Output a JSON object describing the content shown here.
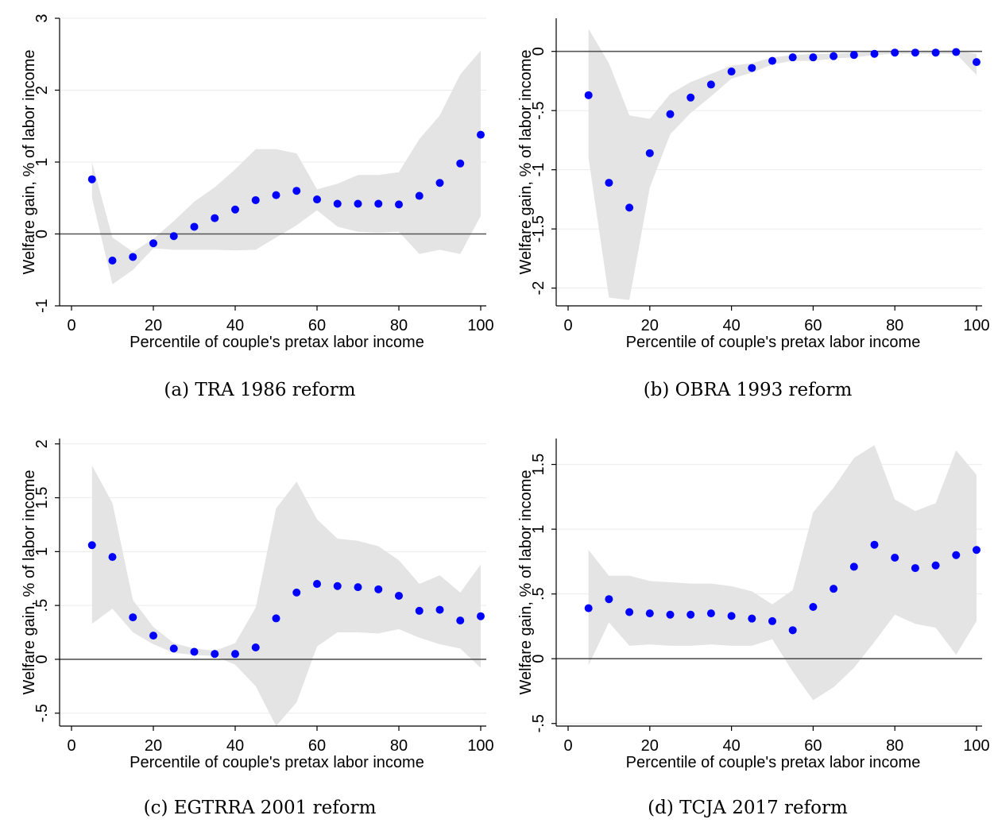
{
  "chart_data": [
    {
      "type": "scatter",
      "xlabel": "Percentile of couple's pretax labor income",
      "ylabel": "Welfare gain, % of labor income",
      "caption": "(a) TRA 1986 reform",
      "xlim": [
        0,
        100
      ],
      "ylim": [
        -1,
        3
      ],
      "xticks": [
        "0",
        "20",
        "40",
        "60",
        "80",
        "100"
      ],
      "yticks": [
        "-1",
        "0",
        "1",
        "2",
        "3"
      ],
      "x": [
        5,
        10,
        15,
        20,
        25,
        30,
        35,
        40,
        45,
        50,
        55,
        60,
        65,
        70,
        75,
        80,
        85,
        90,
        95,
        100
      ],
      "y": [
        0.76,
        -0.37,
        -0.32,
        -0.13,
        -0.03,
        0.1,
        0.22,
        0.34,
        0.47,
        0.54,
        0.6,
        0.48,
        0.42,
        0.42,
        0.42,
        0.41,
        0.53,
        0.71,
        0.98,
        1.38
      ],
      "ci_upper": [
        1.0,
        -0.05,
        -0.25,
        -0.07,
        0.18,
        0.45,
        0.65,
        0.9,
        1.18,
        1.18,
        1.12,
        0.62,
        0.7,
        0.82,
        0.82,
        0.86,
        1.32,
        1.65,
        2.22,
        2.55
      ],
      "ci_lower": [
        0.5,
        -0.7,
        -0.5,
        -0.2,
        -0.22,
        -0.22,
        -0.22,
        -0.23,
        -0.22,
        -0.05,
        0.12,
        0.33,
        0.1,
        0.03,
        0.02,
        0.03,
        -0.28,
        -0.22,
        -0.28,
        0.25
      ],
      "colors": {
        "points": "#0000ff",
        "band": "#e4e4e4",
        "grid": "#ebebeb",
        "zero_line": "#555555"
      }
    },
    {
      "type": "scatter",
      "xlabel": "Percentile of couple's pretax labor income",
      "ylabel": "Welfare gain, % of labor income",
      "caption": "(b) OBRA 1993 reform",
      "xlim": [
        0,
        100
      ],
      "ylim": [
        -2.15,
        0.28
      ],
      "xticks": [
        "0",
        "20",
        "40",
        "60",
        "80",
        "100"
      ],
      "yticks": [
        "-2",
        "-1.5",
        "-1",
        "-.5",
        "0"
      ],
      "x": [
        5,
        10,
        15,
        20,
        25,
        30,
        35,
        40,
        45,
        50,
        55,
        60,
        65,
        70,
        75,
        80,
        85,
        90,
        95,
        100
      ],
      "y": [
        -0.37,
        -1.11,
        -1.32,
        -0.86,
        -0.53,
        -0.39,
        -0.28,
        -0.17,
        -0.14,
        -0.08,
        -0.05,
        -0.05,
        -0.04,
        -0.03,
        -0.02,
        -0.01,
        -0.01,
        -0.01,
        -0.005,
        -0.09
      ],
      "ci_upper": [
        0.19,
        -0.1,
        -0.54,
        -0.57,
        -0.36,
        -0.26,
        -0.19,
        -0.12,
        -0.1,
        -0.05,
        -0.03,
        -0.02,
        -0.02,
        -0.01,
        -0.005,
        0.0,
        0.0,
        0.005,
        0.01,
        -0.02
      ],
      "ci_lower": [
        -0.9,
        -2.08,
        -2.1,
        -1.15,
        -0.7,
        -0.52,
        -0.38,
        -0.23,
        -0.18,
        -0.11,
        -0.08,
        -0.08,
        -0.06,
        -0.05,
        -0.03,
        -0.02,
        -0.02,
        -0.02,
        -0.02,
        -0.2
      ],
      "colors": {
        "points": "#0000ff",
        "band": "#e4e4e4",
        "grid": "#ebebeb",
        "zero_line": "#555555"
      }
    },
    {
      "type": "scatter",
      "xlabel": "Percentile of couple's pretax labor income",
      "ylabel": "Welfare gain, % of labor income",
      "caption": "(c) EGTRRA 2001 reform",
      "xlim": [
        0,
        100
      ],
      "ylim": [
        -0.62,
        2.05
      ],
      "xticks": [
        "0",
        "20",
        "40",
        "60",
        "80",
        "100"
      ],
      "yticks": [
        "-.5",
        "0",
        ".5",
        "1",
        "1.5",
        "2"
      ],
      "x": [
        5,
        10,
        15,
        20,
        25,
        30,
        35,
        40,
        45,
        50,
        55,
        60,
        65,
        70,
        75,
        80,
        85,
        90,
        95,
        100
      ],
      "y": [
        1.06,
        0.95,
        0.39,
        0.22,
        0.1,
        0.07,
        0.05,
        0.05,
        0.11,
        0.38,
        0.62,
        0.7,
        0.68,
        0.67,
        0.65,
        0.59,
        0.45,
        0.46,
        0.36,
        0.4
      ],
      "ci_upper": [
        1.8,
        1.45,
        0.55,
        0.3,
        0.15,
        0.1,
        0.08,
        0.15,
        0.48,
        1.4,
        1.65,
        1.3,
        1.12,
        1.1,
        1.05,
        0.92,
        0.7,
        0.78,
        0.62,
        0.88
      ],
      "ci_lower": [
        0.33,
        0.47,
        0.25,
        0.14,
        0.06,
        0.04,
        0.03,
        -0.05,
        -0.25,
        -0.62,
        -0.4,
        0.12,
        0.25,
        0.25,
        0.24,
        0.28,
        0.2,
        0.14,
        0.1,
        -0.08
      ],
      "colors": {
        "points": "#0000ff",
        "band": "#e4e4e4",
        "grid": "#ebebeb",
        "zero_line": "#555555"
      }
    },
    {
      "type": "scatter",
      "xlabel": "Percentile of couple's pretax labor income",
      "ylabel": "Welfare gain, % of labor income",
      "caption": "(d) TCJA 2017 reform",
      "xlim": [
        0,
        100
      ],
      "ylim": [
        -0.52,
        1.7
      ],
      "xticks": [
        "0",
        "20",
        "40",
        "60",
        "80",
        "100"
      ],
      "yticks": [
        "-.5",
        "0",
        ".5",
        "1",
        "1.5"
      ],
      "x": [
        5,
        10,
        15,
        20,
        25,
        30,
        35,
        40,
        45,
        50,
        55,
        60,
        65,
        70,
        75,
        80,
        85,
        90,
        95,
        100
      ],
      "y": [
        0.39,
        0.46,
        0.36,
        0.35,
        0.34,
        0.34,
        0.35,
        0.33,
        0.31,
        0.29,
        0.22,
        0.4,
        0.54,
        0.71,
        0.88,
        0.78,
        0.7,
        0.72,
        0.8,
        0.84
      ],
      "ci_upper": [
        0.84,
        0.64,
        0.64,
        0.6,
        0.59,
        0.58,
        0.58,
        0.56,
        0.52,
        0.42,
        0.53,
        1.13,
        1.32,
        1.55,
        1.65,
        1.23,
        1.14,
        1.2,
        1.61,
        1.42
      ],
      "ci_lower": [
        -0.05,
        0.28,
        0.1,
        0.11,
        0.1,
        0.1,
        0.11,
        0.1,
        0.1,
        0.15,
        -0.1,
        -0.32,
        -0.22,
        -0.07,
        0.13,
        0.34,
        0.27,
        0.24,
        0.03,
        0.29
      ],
      "colors": {
        "points": "#0000ff",
        "band": "#e4e4e4",
        "grid": "#ebebeb",
        "zero_line": "#555555"
      }
    }
  ]
}
